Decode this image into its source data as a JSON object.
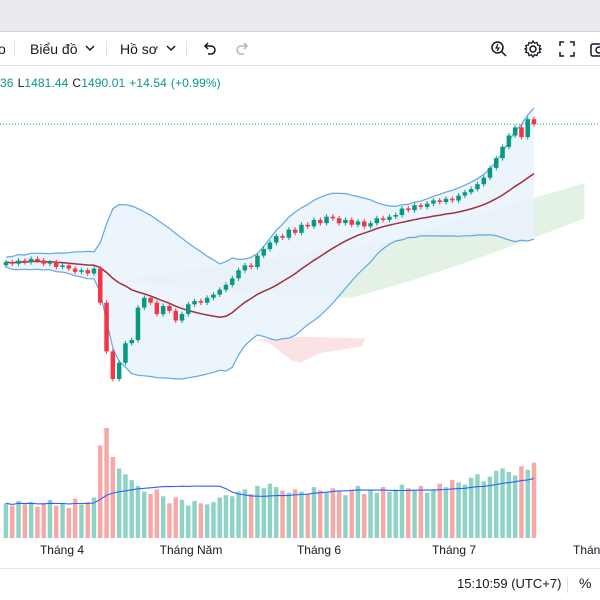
{
  "toolbar": {
    "left_partial": "o",
    "chart_menu_label": "Biểu đồ",
    "profile_menu_label": "Hồ sơ",
    "icons": [
      "undo-icon",
      "redo-icon",
      "quick-search-icon",
      "gear-icon",
      "fullscreen-icon",
      "camera-icon"
    ]
  },
  "ohlc": {
    "open_tail": "36",
    "low_label": "L",
    "low_value": "1481.44",
    "close_label": "C",
    "close_value": "1490.01",
    "change": "+14.54",
    "change_pct": "(+0.99%)"
  },
  "colors": {
    "up": "#089981",
    "down": "#f23645",
    "volume_up": "#8fd3c7",
    "volume_down": "#f7a9a7",
    "bollinger_band": "#5ea8e6",
    "bollinger_fill": "#e9f2fb",
    "bollinger_basis": "#a0303e",
    "cloud_green": "#e3f2e5",
    "cloud_red": "#fbe3e5",
    "volume_ma": "#2962ff"
  },
  "xaxis": {
    "labels": [
      "Tháng 4",
      "Tháng Năm",
      "Tháng 6",
      "Tháng 7",
      "Tháng"
    ]
  },
  "statusbar": {
    "clock": "15:10:59 (UTC+7)",
    "percent_toggle": "%"
  },
  "chart_data": {
    "type": "candlestick",
    "x_ticks": [
      "Tháng 4",
      "Tháng Năm",
      "Tháng 6",
      "Tháng 7",
      "Tháng"
    ],
    "last_close": 1490.01,
    "indicators": [
      "Bollinger Bands",
      "Ichimoku Cloud",
      "Volume",
      "Volume MA"
    ],
    "candles": [
      {
        "o": 48,
        "c": 50
      },
      {
        "o": 50,
        "c": 49
      },
      {
        "o": 49,
        "c": 51
      },
      {
        "o": 51,
        "c": 50
      },
      {
        "o": 50,
        "c": 52
      },
      {
        "o": 52,
        "c": 51
      },
      {
        "o": 51,
        "c": 49
      },
      {
        "o": 49,
        "c": 50
      },
      {
        "o": 50,
        "c": 47
      },
      {
        "o": 47,
        "c": 48
      },
      {
        "o": 48,
        "c": 46
      },
      {
        "o": 46,
        "c": 44
      },
      {
        "o": 44,
        "c": 45
      },
      {
        "o": 45,
        "c": 43
      },
      {
        "o": 43,
        "c": 46
      },
      {
        "o": 46,
        "c": 25
      },
      {
        "o": 25,
        "c": -5
      },
      {
        "o": -5,
        "c": -22
      },
      {
        "o": -22,
        "c": -12
      },
      {
        "o": -12,
        "c": 0
      },
      {
        "o": 0,
        "c": 2
      },
      {
        "o": 2,
        "c": 22
      },
      {
        "o": 22,
        "c": 28
      },
      {
        "o": 28,
        "c": 25
      },
      {
        "o": 25,
        "c": 18
      },
      {
        "o": 18,
        "c": 23
      },
      {
        "o": 23,
        "c": 20
      },
      {
        "o": 20,
        "c": 14
      },
      {
        "o": 14,
        "c": 18
      },
      {
        "o": 18,
        "c": 24
      },
      {
        "o": 24,
        "c": 26
      },
      {
        "o": 26,
        "c": 25
      },
      {
        "o": 25,
        "c": 28
      },
      {
        "o": 28,
        "c": 30
      },
      {
        "o": 30,
        "c": 33
      },
      {
        "o": 33,
        "c": 36
      },
      {
        "o": 36,
        "c": 40
      },
      {
        "o": 40,
        "c": 45
      },
      {
        "o": 45,
        "c": 48
      },
      {
        "o": 48,
        "c": 47
      },
      {
        "o": 47,
        "c": 54
      },
      {
        "o": 54,
        "c": 58
      },
      {
        "o": 58,
        "c": 62
      },
      {
        "o": 62,
        "c": 66
      },
      {
        "o": 66,
        "c": 65
      },
      {
        "o": 65,
        "c": 70
      },
      {
        "o": 70,
        "c": 68
      },
      {
        "o": 68,
        "c": 73
      },
      {
        "o": 73,
        "c": 72
      },
      {
        "o": 72,
        "c": 76
      },
      {
        "o": 76,
        "c": 74
      },
      {
        "o": 74,
        "c": 78
      },
      {
        "o": 78,
        "c": 77
      },
      {
        "o": 77,
        "c": 74
      },
      {
        "o": 74,
        "c": 76
      },
      {
        "o": 76,
        "c": 73
      },
      {
        "o": 73,
        "c": 75
      },
      {
        "o": 75,
        "c": 72
      },
      {
        "o": 72,
        "c": 74
      },
      {
        "o": 74,
        "c": 77
      },
      {
        "o": 77,
        "c": 76
      },
      {
        "o": 76,
        "c": 78
      },
      {
        "o": 78,
        "c": 79
      },
      {
        "o": 79,
        "c": 83
      },
      {
        "o": 83,
        "c": 82
      },
      {
        "o": 82,
        "c": 85
      },
      {
        "o": 85,
        "c": 84
      },
      {
        "o": 84,
        "c": 86
      },
      {
        "o": 86,
        "c": 88
      },
      {
        "o": 88,
        "c": 87
      },
      {
        "o": 87,
        "c": 89
      },
      {
        "o": 89,
        "c": 88
      },
      {
        "o": 88,
        "c": 91
      },
      {
        "o": 91,
        "c": 93
      },
      {
        "o": 93,
        "c": 95
      },
      {
        "o": 95,
        "c": 98
      },
      {
        "o": 98,
        "c": 102
      },
      {
        "o": 102,
        "c": 108
      },
      {
        "o": 108,
        "c": 114
      },
      {
        "o": 114,
        "c": 121
      },
      {
        "o": 121,
        "c": 128
      },
      {
        "o": 128,
        "c": 133
      },
      {
        "o": 133,
        "c": 127
      },
      {
        "o": 127,
        "c": 138
      },
      {
        "o": 138,
        "c": 135
      }
    ],
    "volumes": [
      30,
      28,
      32,
      29,
      31,
      27,
      30,
      33,
      28,
      30,
      26,
      34,
      29,
      31,
      35,
      80,
      95,
      70,
      60,
      55,
      50,
      45,
      40,
      38,
      42,
      36,
      30,
      35,
      33,
      28,
      32,
      30,
      29,
      31,
      35,
      37,
      36,
      40,
      42,
      38,
      45,
      43,
      47,
      44,
      41,
      39,
      42,
      40,
      38,
      44,
      41,
      39,
      43,
      40,
      37,
      42,
      45,
      38,
      41,
      39,
      44,
      40,
      42,
      46,
      43,
      41,
      45,
      39,
      42,
      47,
      44,
      50,
      48,
      46,
      52,
      55,
      49,
      53,
      58,
      60,
      57,
      54,
      62,
      59,
      65
    ]
  }
}
